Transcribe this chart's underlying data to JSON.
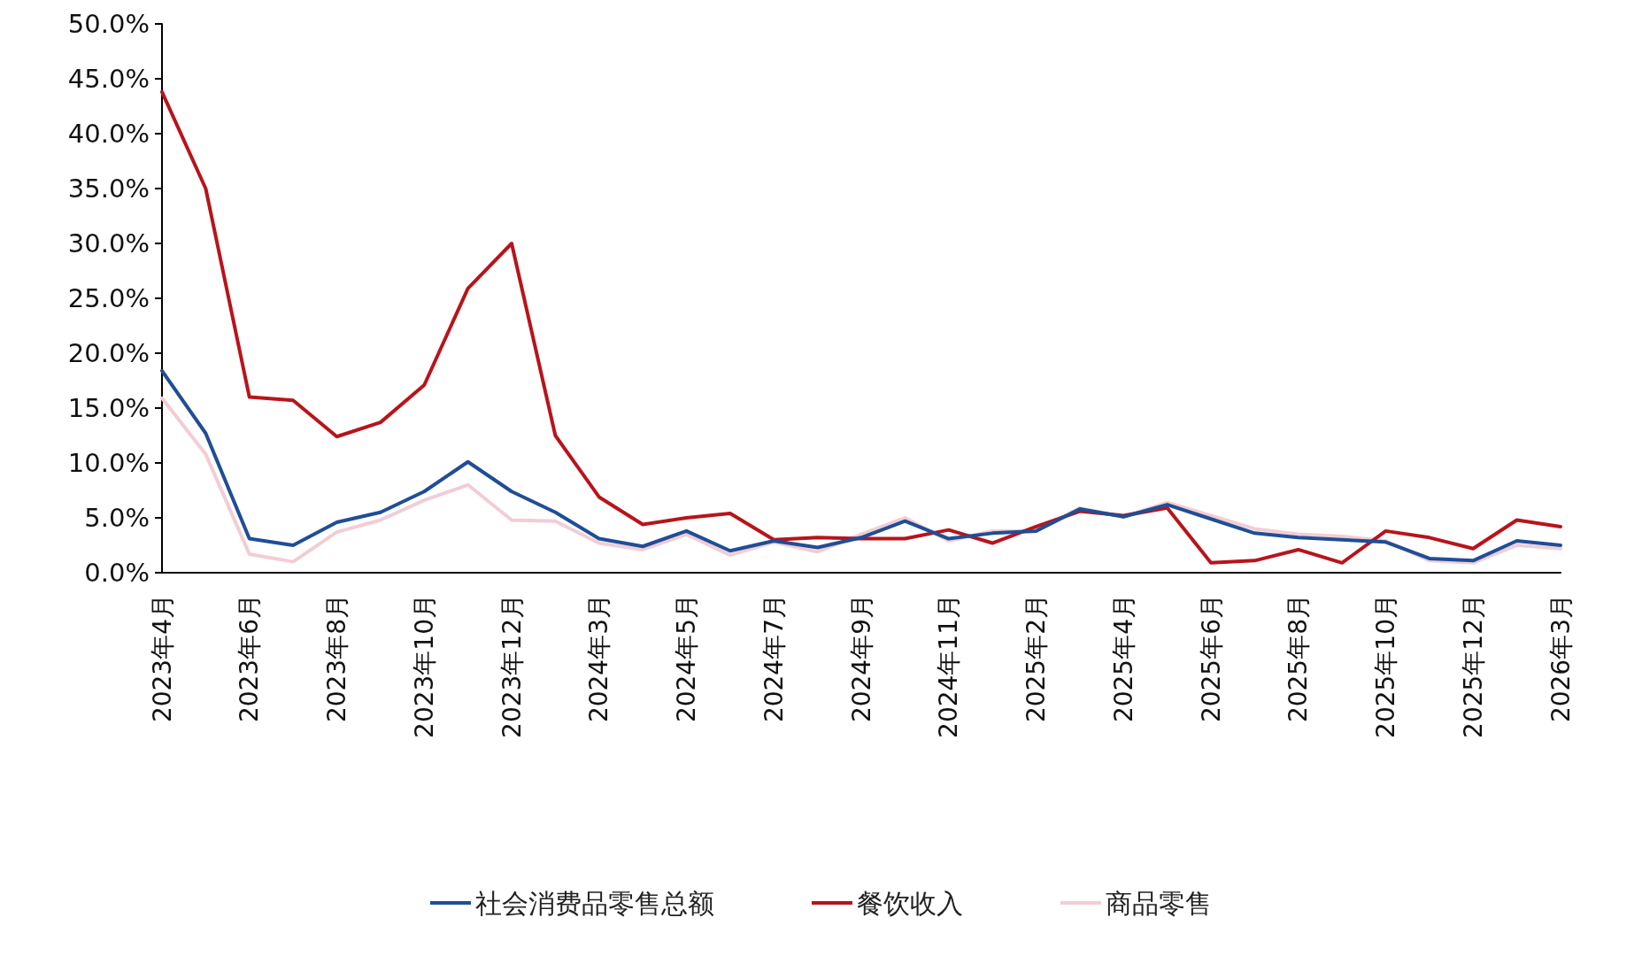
{
  "chart_data": {
    "type": "line",
    "categories": [
      "2023年4月",
      null,
      "2023年6月",
      null,
      "2023年8月",
      null,
      "2023年10月",
      null,
      "2023年12月",
      null,
      "2024年3月",
      null,
      "2024年5月",
      null,
      "2024年7月",
      null,
      "2024年9月",
      null,
      "2024年11月",
      null,
      "2025年2月",
      null,
      "2025年4月",
      null,
      "2025年6月",
      null,
      "2025年8月",
      null,
      "2025年10月",
      null,
      "2025年12月",
      null,
      "2026年3月"
    ],
    "series": [
      {
        "name": "社会消费品零售总额",
        "color": "#1f4e96",
        "values": [
          18.4,
          12.7,
          3.1,
          2.5,
          4.6,
          5.5,
          7.4,
          10.1,
          7.4,
          5.5,
          3.1,
          2.4,
          3.8,
          2.0,
          2.9,
          2.3,
          3.2,
          4.7,
          3.1,
          3.6,
          3.8,
          5.8,
          5.1,
          6.2,
          4.9,
          3.6,
          3.2,
          3.0,
          2.8,
          1.3,
          1.1,
          2.9,
          2.5
        ]
      },
      {
        "name": "餐饮收入",
        "color": "#b8141b",
        "values": [
          43.8,
          35.0,
          16.0,
          15.7,
          12.4,
          13.7,
          17.1,
          25.9,
          30.0,
          12.5,
          6.9,
          4.4,
          5.0,
          5.4,
          3.0,
          3.2,
          3.1,
          3.1,
          3.9,
          2.7,
          4.2,
          5.6,
          5.2,
          5.9,
          0.9,
          1.1,
          2.1,
          0.9,
          3.8,
          3.2,
          2.2,
          4.8,
          4.2
        ]
      },
      {
        "name": "商品零售",
        "color": "#f2cdd4",
        "values": [
          15.9,
          10.8,
          1.7,
          1.0,
          3.7,
          4.8,
          6.6,
          8.0,
          4.8,
          4.7,
          2.7,
          2.1,
          3.5,
          1.6,
          2.8,
          1.9,
          3.5,
          5.0,
          2.9,
          3.8,
          3.8,
          5.9,
          5.1,
          6.4,
          5.2,
          4.0,
          3.5,
          3.3,
          2.9,
          1.1,
          0.9,
          2.5,
          2.2
        ]
      }
    ],
    "ylim": [
      0,
      50
    ],
    "yticks": [
      {
        "value": 0,
        "label": "0.0%"
      },
      {
        "value": 5,
        "label": "5.0%"
      },
      {
        "value": 10,
        "label": "10.0%"
      },
      {
        "value": 15,
        "label": "15.0%"
      },
      {
        "value": 20,
        "label": "20.0%"
      },
      {
        "value": 25,
        "label": "25.0%"
      },
      {
        "value": 30,
        "label": "30.0%"
      },
      {
        "value": 35,
        "label": "35.0%"
      },
      {
        "value": 40,
        "label": "40.0%"
      },
      {
        "value": 45,
        "label": "45.0%"
      },
      {
        "value": 50,
        "label": "50.0%"
      }
    ],
    "grid": false,
    "legend": "bottom",
    "marker": "none",
    "line_style": "solid"
  }
}
